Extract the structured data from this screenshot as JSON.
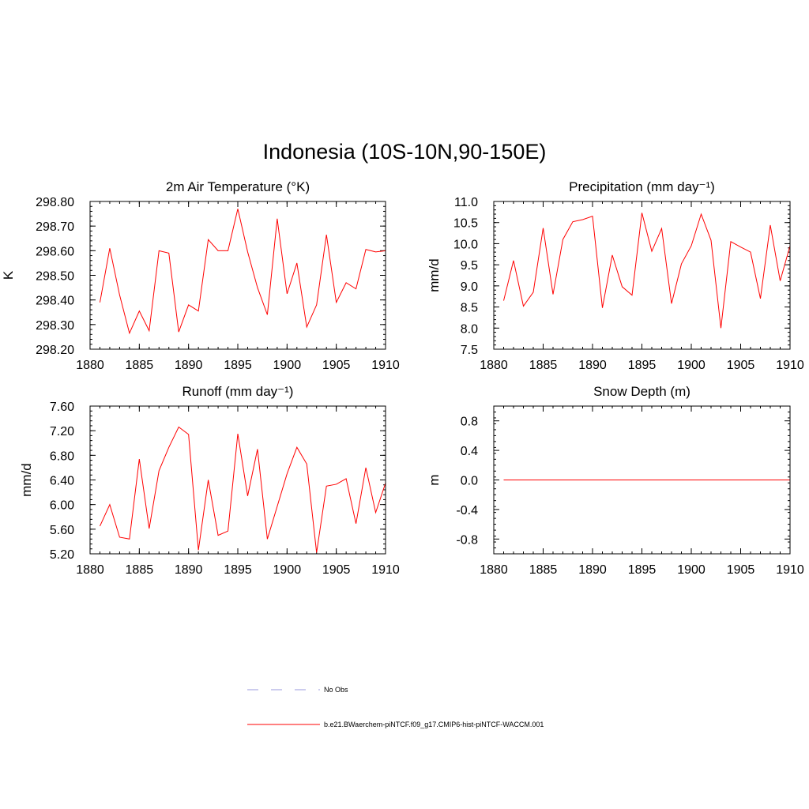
{
  "figure": {
    "title": "Indonesia (10S-10N,90-150E)"
  },
  "legend": {
    "obs_label": "No Obs",
    "obs_color": "#9999dd",
    "model_label": "b.e21.BWaerchem-piNTCF.f09_g17.CMIP6-hist-piNTCF-WACCM.001",
    "model_color": "#ff0000"
  },
  "chart_data": [
    {
      "type": "line",
      "title": "2m Air Temperature (°K)",
      "ylabel": "K",
      "xlim": [
        1880,
        1910
      ],
      "ylim": [
        298.2,
        298.8
      ],
      "x_ticks": [
        1880,
        1885,
        1890,
        1895,
        1900,
        1905,
        1910
      ],
      "y_ticks": [
        298.2,
        298.3,
        298.4,
        298.5,
        298.6,
        298.7,
        298.8
      ],
      "y_tick_labels": [
        "298.20",
        "298.30",
        "298.40",
        "298.50",
        "298.60",
        "298.70",
        "298.80"
      ],
      "series": [
        {
          "color": "#ff0000",
          "x": [
            1881,
            1882,
            1883,
            1884,
            1885,
            1886,
            1887,
            1888,
            1889,
            1890,
            1891,
            1892,
            1893,
            1894,
            1895,
            1896,
            1897,
            1898,
            1899,
            1900,
            1901,
            1902,
            1903,
            1904,
            1905,
            1906,
            1907,
            1908,
            1909,
            1910
          ],
          "y": [
            298.39,
            298.61,
            298.42,
            298.265,
            298.355,
            298.275,
            298.6,
            298.59,
            298.27,
            298.38,
            298.355,
            298.645,
            298.6,
            298.6,
            298.77,
            298.595,
            298.45,
            298.34,
            298.73,
            298.425,
            298.55,
            298.29,
            298.38,
            298.665,
            298.39,
            298.47,
            298.445,
            298.605,
            298.595,
            298.6
          ]
        }
      ]
    },
    {
      "type": "line",
      "title": "Precipitation (mm day⁻¹)",
      "ylabel": "mm/d",
      "xlim": [
        1880,
        1910
      ],
      "ylim": [
        7.5,
        11.0
      ],
      "x_ticks": [
        1880,
        1885,
        1890,
        1895,
        1900,
        1905,
        1910
      ],
      "y_ticks": [
        7.5,
        8.0,
        8.5,
        9.0,
        9.5,
        10.0,
        10.5,
        11.0
      ],
      "y_tick_labels": [
        "7.5",
        "8.0",
        "8.5",
        "9.0",
        "9.5",
        "10.0",
        "10.5",
        "11.0"
      ],
      "series": [
        {
          "color": "#ff0000",
          "x": [
            1881,
            1882,
            1883,
            1884,
            1885,
            1886,
            1887,
            1888,
            1889,
            1890,
            1891,
            1892,
            1893,
            1894,
            1895,
            1896,
            1897,
            1898,
            1899,
            1900,
            1901,
            1902,
            1903,
            1904,
            1905,
            1906,
            1907,
            1908,
            1909,
            1910
          ],
          "y": [
            8.65,
            9.6,
            8.52,
            8.85,
            10.37,
            8.8,
            10.1,
            10.52,
            10.57,
            10.65,
            8.48,
            9.73,
            8.98,
            8.78,
            10.73,
            9.82,
            10.36,
            8.58,
            9.52,
            9.95,
            10.7,
            10.08,
            8.0,
            10.05,
            9.92,
            9.8,
            8.7,
            10.44,
            9.12,
            9.95
          ]
        }
      ]
    },
    {
      "type": "line",
      "title": "Runoff (mm day⁻¹)",
      "ylabel": "mm/d",
      "xlim": [
        1880,
        1910
      ],
      "ylim": [
        5.2,
        7.6
      ],
      "x_ticks": [
        1880,
        1885,
        1890,
        1895,
        1900,
        1905,
        1910
      ],
      "y_ticks": [
        5.2,
        5.6,
        6.0,
        6.4,
        6.8,
        7.2,
        7.6
      ],
      "y_tick_labels": [
        "5.20",
        "5.60",
        "6.00",
        "6.40",
        "6.80",
        "7.20",
        "7.60"
      ],
      "series": [
        {
          "color": "#ff0000",
          "x": [
            1881,
            1882,
            1883,
            1884,
            1885,
            1886,
            1887,
            1888,
            1889,
            1890,
            1891,
            1892,
            1893,
            1894,
            1895,
            1896,
            1897,
            1898,
            1899,
            1900,
            1901,
            1902,
            1903,
            1904,
            1905,
            1906,
            1907,
            1908,
            1909,
            1910
          ],
          "y": [
            5.65,
            6.0,
            5.47,
            5.44,
            6.74,
            5.61,
            6.55,
            6.93,
            7.26,
            7.14,
            5.26,
            6.4,
            5.5,
            5.57,
            7.15,
            6.14,
            6.9,
            5.44,
            5.97,
            6.5,
            6.93,
            6.66,
            5.22,
            6.3,
            6.33,
            6.42,
            5.69,
            6.6,
            5.87,
            6.35
          ]
        }
      ]
    },
    {
      "type": "line",
      "title": "Snow Depth (m)",
      "ylabel": "m",
      "xlim": [
        1880,
        1910
      ],
      "ylim": [
        -1.0,
        1.0
      ],
      "x_ticks": [
        1880,
        1885,
        1890,
        1895,
        1900,
        1905,
        1910
      ],
      "y_ticks": [
        -0.8,
        -0.4,
        0.0,
        0.4,
        0.8
      ],
      "y_tick_labels": [
        "-0.8",
        "-0.4",
        "0.0",
        "0.4",
        "0.8"
      ],
      "series": [
        {
          "color": "#ff0000",
          "x": [
            1881,
            1882,
            1883,
            1884,
            1885,
            1886,
            1887,
            1888,
            1889,
            1890,
            1891,
            1892,
            1893,
            1894,
            1895,
            1896,
            1897,
            1898,
            1899,
            1900,
            1901,
            1902,
            1903,
            1904,
            1905,
            1906,
            1907,
            1908,
            1909,
            1910
          ],
          "y": [
            0,
            0,
            0,
            0,
            0,
            0,
            0,
            0,
            0,
            0,
            0,
            0,
            0,
            0,
            0,
            0,
            0,
            0,
            0,
            0,
            0,
            0,
            0,
            0,
            0,
            0,
            0,
            0,
            0,
            0
          ]
        }
      ]
    }
  ]
}
